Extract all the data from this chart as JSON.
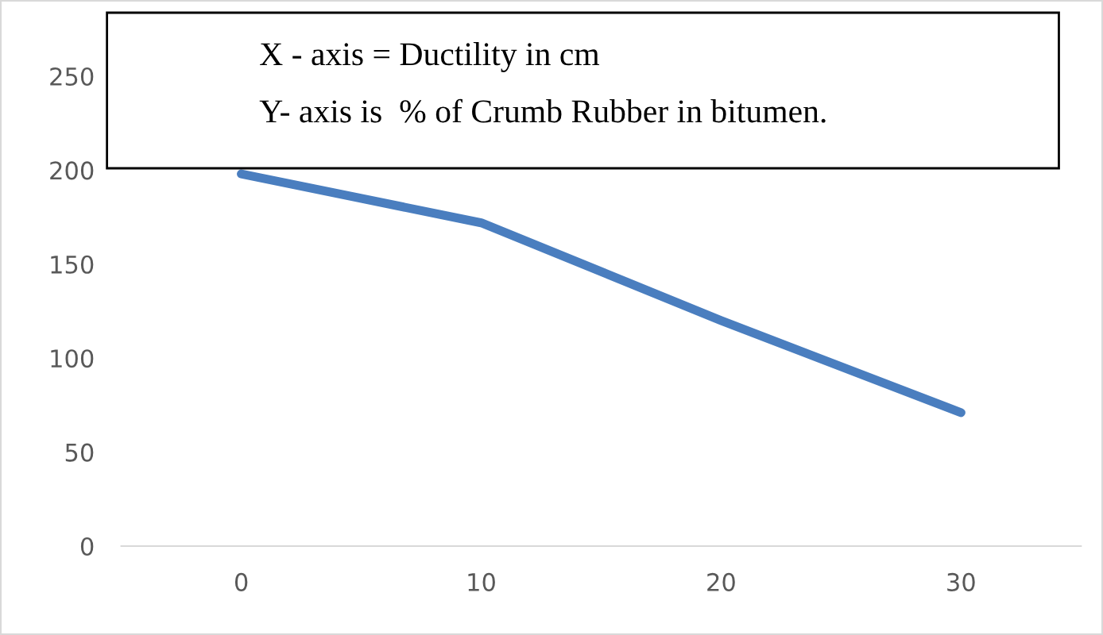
{
  "chart_data": {
    "type": "line",
    "categories": [
      "0",
      "10",
      "20",
      "30"
    ],
    "series": [
      {
        "color": "#4a7ebf",
        "values": [
          198,
          172,
          120,
          71
        ]
      }
    ],
    "ylim": [
      0,
      250
    ],
    "yticks": [
      0,
      50,
      100,
      150,
      200,
      250
    ],
    "grid": false,
    "legend": false,
    "marker": "none",
    "line_style": "solid",
    "annotations": [
      "X - axis = Ductility in cm",
      "Y- axis is  % of Crumb Rubber in bitumen."
    ]
  }
}
